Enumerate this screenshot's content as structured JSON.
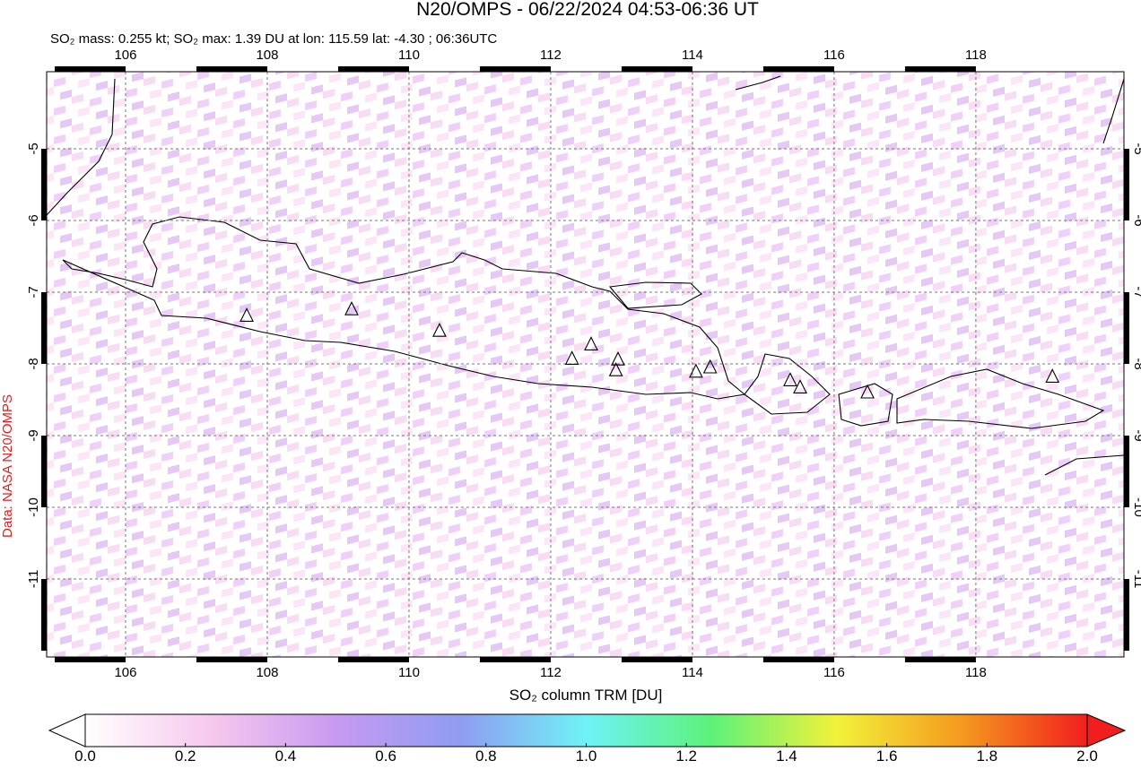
{
  "map": {
    "title": "N20/OMPS - 06/22/2024 04:53-06:36 UT",
    "subtitle": "SO₂ mass: 0.255 kt; SO₂ max: 1.39 DU at lon: 115.59 lat: -4.30 ; 06:36UTC",
    "credit": "Data: NASA N20/OMPS",
    "xlim": [
      104.886,
      120.09
    ],
    "ylim": [
      -12.0875,
      -3.925
    ],
    "xticks": [
      106,
      108,
      110,
      112,
      114,
      116,
      118
    ],
    "yticks": [
      -5,
      -6,
      -7,
      -8,
      -9,
      -10,
      -11
    ],
    "volcanoes": {
      "lon": [
        107.71,
        109.19,
        110.43,
        112.3,
        112.57,
        112.95,
        112.92,
        114.05,
        114.25,
        115.38,
        115.52,
        116.47,
        119.08
      ],
      "lat": [
        -7.33,
        -7.24,
        -7.54,
        -7.93,
        -7.73,
        -7.94,
        -8.09,
        -8.11,
        -8.05,
        -8.23,
        -8.33,
        -8.4,
        -8.18
      ]
    },
    "colorbar": {
      "label": "SO₂ column TRM [DU]",
      "lim": [
        0,
        2
      ],
      "ticks": [
        {
          "value": 0,
          "label": "0.0"
        },
        {
          "value": 0.2,
          "label": "0.2"
        },
        {
          "value": 0.4,
          "label": "0.4"
        },
        {
          "value": 0.6,
          "label": "0.6"
        },
        {
          "value": 0.8,
          "label": "0.8"
        },
        {
          "value": 1,
          "label": "1.0"
        },
        {
          "value": 1.2,
          "label": "1.2"
        },
        {
          "value": 1.4,
          "label": "1.4"
        },
        {
          "value": 1.6,
          "label": "1.6"
        },
        {
          "value": 1.8,
          "label": "1.8"
        },
        {
          "value": 2,
          "label": "2.0"
        }
      ],
      "colors": [
        "#ffffff",
        "#f7c8ee",
        "#c79af2",
        "#8f9cf2",
        "#6ff2f7",
        "#5cf27a",
        "#f2f23a",
        "#f59a1e",
        "#f21e1e"
      ]
    }
  }
}
